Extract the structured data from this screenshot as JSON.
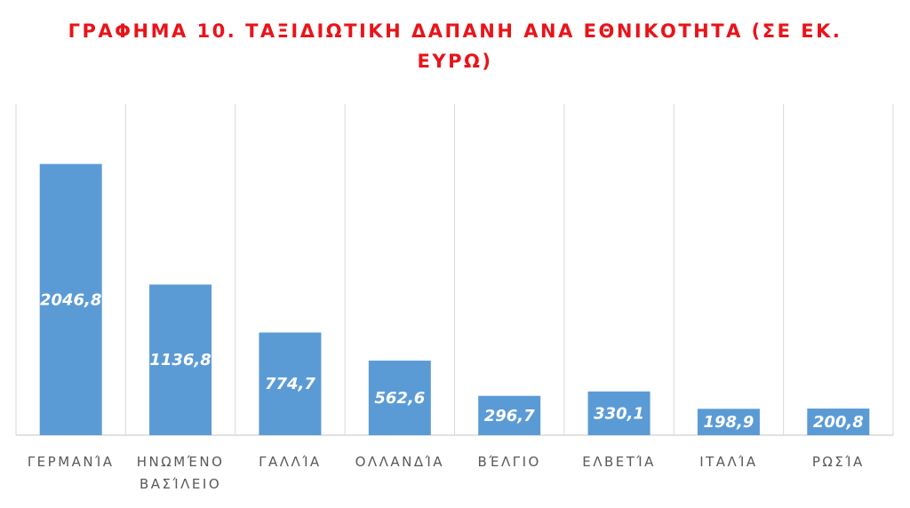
{
  "chart_data": {
    "type": "bar",
    "title": "ΓΡΑΦΗΜΑ 10. ΤΑΞΙΔΙΩΤΙΚΗ ΔΑΠΑΝΗ ΑΝΑ ΕΘΝΙΚΟΤΗΤΑ (ΣΕ ΕΚ. ΕΥΡΩ)",
    "xlabel": "",
    "ylabel": "",
    "categories": [
      [
        "ΓΕΡΜΑΝΊΑ"
      ],
      [
        "ΗΝΩΜΈΝΟ",
        "ΒΑΣΊΛΕΙΟ"
      ],
      [
        "ΓΑΛΛΊΑ"
      ],
      [
        "ΟΛΛΑΝΔΊΑ"
      ],
      [
        "ΒΈΛΓΙΟ"
      ],
      [
        "ΕΛΒΕΤΊΑ"
      ],
      [
        "ΙΤΑΛΊΑ"
      ],
      [
        "ΡΩΣΊΑ"
      ]
    ],
    "values": [
      2046.8,
      1136.8,
      774.7,
      562.6,
      296.7,
      330.1,
      198.9,
      200.8
    ],
    "data_labels": [
      "2046,8",
      "1136,8",
      "774,7",
      "562,6",
      "296,7",
      "330,1",
      "198,9",
      "200,8"
    ],
    "ylim": [
      0,
      2500
    ],
    "grid": "vertical category separators",
    "legend": "none",
    "colors": {
      "bar": "#5b9bd5",
      "title": "#e8141a",
      "grid": "#d9d9d9",
      "axis_text": "#595959"
    }
  }
}
